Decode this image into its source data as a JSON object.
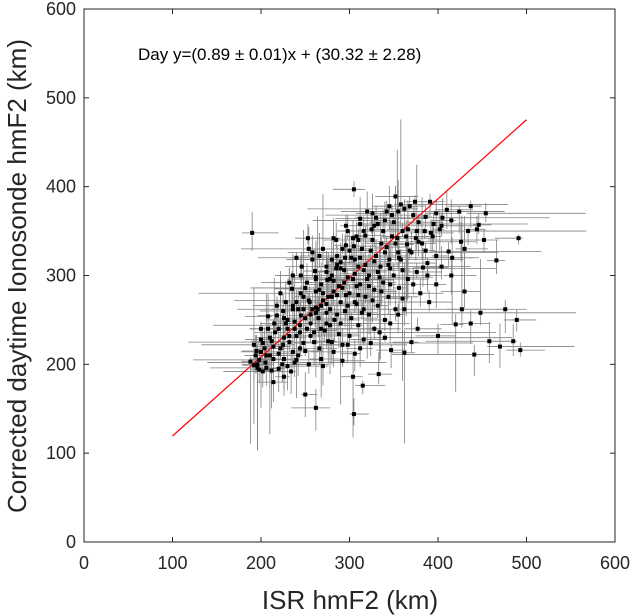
{
  "chart_data": {
    "type": "scatter",
    "title": "",
    "xlabel": "ISR hmF2 (km)",
    "ylabel": "Corrected daytime Ionosonde hmF2 (km)",
    "xlim": [
      0,
      600
    ],
    "ylim": [
      0,
      600
    ],
    "xticks": [
      "0",
      "100",
      "200",
      "300",
      "400",
      "500",
      "600"
    ],
    "yticks": [
      "0",
      "100",
      "200",
      "300",
      "400",
      "500",
      "600"
    ],
    "annotation": "Day y=(0.89 ± 0.01)x + (30.32 ± 2.28)",
    "fit_line": {
      "slope": 0.89,
      "intercept": 30.32,
      "x_range": [
        100,
        500
      ],
      "color": "#ff0000"
    },
    "marker_color": "#000000",
    "errorbar_color": "#808080",
    "series": [
      {
        "name": "Day",
        "points": [
          [
            190,
            348
          ],
          [
            305,
            397
          ],
          [
            352,
            389
          ],
          [
            374,
            383
          ],
          [
            391,
            383
          ],
          [
            437,
            378
          ],
          [
            446,
            357
          ],
          [
            491,
            342
          ],
          [
            466,
            317
          ],
          [
            412,
            327
          ],
          [
            430,
            282
          ],
          [
            437,
            246
          ],
          [
            427,
            262
          ],
          [
            458,
            226
          ],
          [
            470,
            220
          ],
          [
            485,
            226
          ],
          [
            493,
            216
          ],
          [
            489,
            250
          ],
          [
            441,
            211
          ],
          [
            377,
            240
          ],
          [
            355,
            256
          ],
          [
            362,
            213
          ],
          [
            383,
            309
          ],
          [
            347,
            216
          ],
          [
            305,
            144
          ],
          [
            333,
            189
          ],
          [
            304,
            186
          ],
          [
            250,
            166
          ],
          [
            262,
            151
          ],
          [
            270,
            198
          ],
          [
            280,
            225
          ],
          [
            292,
            222
          ],
          [
            315,
            176
          ],
          [
            261,
            305
          ],
          [
            240,
            320
          ],
          [
            253,
            342
          ],
          [
            245,
            280
          ],
          [
            225,
            260
          ],
          [
            215,
            246
          ],
          [
            210,
            230
          ],
          [
            200,
            214
          ],
          [
            192,
            199
          ],
          [
            205,
            202
          ],
          [
            220,
            212
          ],
          [
            232,
            225
          ],
          [
            238,
            248
          ],
          [
            248,
            262
          ],
          [
            255,
            270
          ],
          [
            262,
            282
          ],
          [
            268,
            290
          ],
          [
            275,
            295
          ],
          [
            280,
            300
          ],
          [
            285,
            308
          ],
          [
            290,
            315
          ],
          [
            295,
            320
          ],
          [
            300,
            328
          ],
          [
            305,
            333
          ],
          [
            310,
            340
          ],
          [
            318,
            345
          ],
          [
            325,
            352
          ],
          [
            332,
            358
          ],
          [
            340,
            362
          ],
          [
            348,
            368
          ],
          [
            355,
            372
          ],
          [
            362,
            375
          ],
          [
            368,
            378
          ],
          [
            320,
            372
          ],
          [
            330,
            365
          ],
          [
            345,
            378
          ],
          [
            312,
            358
          ],
          [
            298,
            350
          ],
          [
            285,
            340
          ],
          [
            270,
            330
          ],
          [
            258,
            318
          ],
          [
            245,
            300
          ],
          [
            235,
            285
          ],
          [
            228,
            270
          ],
          [
            218,
            255
          ],
          [
            208,
            240
          ],
          [
            200,
            228
          ],
          [
            195,
            215
          ],
          [
            198,
            205
          ],
          [
            210,
            210
          ],
          [
            225,
            222
          ],
          [
            240,
            232
          ],
          [
            252,
            240
          ],
          [
            265,
            252
          ],
          [
            278,
            262
          ],
          [
            290,
            270
          ],
          [
            300,
            280
          ],
          [
            312,
            290
          ],
          [
            322,
            300
          ],
          [
            335,
            310
          ],
          [
            345,
            318
          ],
          [
            355,
            326
          ],
          [
            365,
            335
          ],
          [
            375,
            342
          ],
          [
            385,
            350
          ],
          [
            395,
            358
          ],
          [
            405,
            365
          ],
          [
            260,
            225
          ],
          [
            272,
            238
          ],
          [
            283,
            250
          ],
          [
            295,
            260
          ],
          [
            308,
            268
          ],
          [
            318,
            276
          ],
          [
            328,
            284
          ],
          [
            338,
            292
          ],
          [
            350,
            300
          ],
          [
            360,
            306
          ],
          [
            250,
            215
          ],
          [
            240,
            205
          ],
          [
            230,
            198
          ],
          [
            220,
            195
          ],
          [
            212,
            193
          ],
          [
            202,
            192
          ],
          [
            196,
            196
          ],
          [
            230,
            240
          ],
          [
            245,
            255
          ],
          [
            258,
            262
          ],
          [
            270,
            272
          ],
          [
            282,
            282
          ],
          [
            294,
            292
          ],
          [
            306,
            302
          ],
          [
            318,
            312
          ],
          [
            330,
            322
          ],
          [
            342,
            332
          ],
          [
            354,
            342
          ],
          [
            366,
            352
          ],
          [
            378,
            360
          ],
          [
            264,
            262
          ],
          [
            276,
            276
          ],
          [
            288,
            288
          ],
          [
            298,
            298
          ],
          [
            310,
            310
          ],
          [
            270,
            280
          ],
          [
            282,
            294
          ],
          [
            294,
            306
          ],
          [
            306,
            318
          ],
          [
            256,
            246
          ],
          [
            244,
            236
          ],
          [
            232,
            232
          ],
          [
            222,
            218
          ],
          [
            214,
            206
          ],
          [
            206,
            196
          ],
          [
            226,
            206
          ],
          [
            236,
            214
          ],
          [
            248,
            224
          ],
          [
            260,
            236
          ],
          [
            274,
            246
          ],
          [
            286,
            256
          ],
          [
            298,
            266
          ],
          [
            310,
            278
          ],
          [
            322,
            288
          ],
          [
            334,
            298
          ],
          [
            346,
            308
          ],
          [
            358,
            318
          ],
          [
            370,
            326
          ],
          [
            382,
            336
          ],
          [
            394,
            344
          ],
          [
            402,
            352
          ],
          [
            415,
            362
          ],
          [
            424,
            372
          ],
          [
            410,
            374
          ],
          [
            398,
            370
          ],
          [
            386,
            366
          ],
          [
            372,
            368
          ],
          [
            350,
            360
          ],
          [
            338,
            350
          ],
          [
            326,
            340
          ],
          [
            314,
            330
          ],
          [
            302,
            320
          ],
          [
            290,
            308
          ],
          [
            278,
            296
          ],
          [
            266,
            284
          ],
          [
            254,
            272
          ],
          [
            242,
            262
          ],
          [
            230,
            250
          ],
          [
            220,
            240
          ],
          [
            212,
            226
          ],
          [
            204,
            218
          ],
          [
            236,
            262
          ],
          [
            248,
            276
          ],
          [
            262,
            298
          ],
          [
            274,
            310
          ],
          [
            286,
            322
          ],
          [
            296,
            334
          ],
          [
            308,
            344
          ],
          [
            252,
            292
          ],
          [
            240,
            270
          ],
          [
            228,
            246
          ],
          [
            216,
            236
          ],
          [
            202,
            224
          ],
          [
            194,
            210
          ],
          [
            188,
            203
          ],
          [
            198,
            194
          ],
          [
            300,
            232
          ],
          [
            310,
            244
          ],
          [
            322,
            256
          ],
          [
            332,
            266
          ],
          [
            344,
            276
          ],
          [
            356,
            286
          ],
          [
            366,
            296
          ],
          [
            376,
            304
          ],
          [
            388,
            314
          ],
          [
            398,
            322
          ],
          [
            316,
            228
          ],
          [
            328,
            240
          ],
          [
            340,
            250
          ],
          [
            352,
            262
          ],
          [
            282,
            214
          ],
          [
            292,
            204
          ],
          [
            268,
            206
          ],
          [
            254,
            200
          ],
          [
            242,
            210
          ],
          [
            234,
            192
          ],
          [
            224,
            200
          ],
          [
            306,
            212
          ],
          [
            340,
            230
          ],
          [
            370,
            225
          ],
          [
            400,
            232
          ],
          [
            420,
            245
          ],
          [
            448,
            258
          ],
          [
            476,
            262
          ],
          [
            415,
            300
          ],
          [
            430,
            330
          ],
          [
            398,
            290
          ],
          [
            380,
            280
          ],
          [
            360,
            274
          ],
          [
            372,
            290
          ],
          [
            388,
            300
          ],
          [
            404,
            310
          ],
          [
            416,
            320
          ],
          [
            426,
            338
          ],
          [
            434,
            350
          ],
          [
            444,
            352
          ],
          [
            452,
            340
          ],
          [
            454,
            370
          ],
          [
            386,
            328
          ],
          [
            390,
            270
          ],
          [
            362,
            262
          ],
          [
            346,
            246
          ],
          [
            334,
            236
          ],
          [
            324,
            224
          ],
          [
            312,
            218
          ],
          [
            298,
            222
          ],
          [
            288,
            234
          ],
          [
            276,
            226
          ],
          [
            266,
            218
          ],
          [
            256,
            232
          ],
          [
            244,
            218
          ],
          [
            238,
            202
          ],
          [
            226,
            186
          ],
          [
            214,
            180
          ],
          [
            280,
            318
          ],
          [
            292,
            330
          ],
          [
            304,
            342
          ],
          [
            316,
            350
          ],
          [
            328,
            356
          ],
          [
            266,
            322
          ],
          [
            254,
            330
          ],
          [
            236,
            300
          ],
          [
            246,
            310
          ],
          [
            258,
            326
          ],
          [
            222,
            280
          ],
          [
            232,
            292
          ],
          [
            218,
            266
          ],
          [
            208,
            254
          ],
          [
            200,
            240
          ],
          [
            192,
            222
          ],
          [
            282,
            342
          ],
          [
            296,
            356
          ],
          [
            312,
            364
          ],
          [
            326,
            370
          ],
          [
            342,
            372
          ],
          [
            358,
            380
          ],
          [
            306,
            270
          ],
          [
            316,
            262
          ],
          [
            326,
            272
          ],
          [
            336,
            282
          ],
          [
            346,
            290
          ],
          [
            274,
            268
          ],
          [
            286,
            278
          ],
          [
            262,
            258
          ],
          [
            250,
            252
          ],
          [
            238,
            240
          ],
          [
            226,
            230
          ],
          [
            214,
            220
          ],
          [
            206,
            210
          ],
          [
            196,
            200
          ],
          [
            268,
            240
          ],
          [
            278,
            244
          ],
          [
            290,
            246
          ],
          [
            302,
            252
          ],
          [
            314,
            258
          ],
          [
            262,
            264
          ],
          [
            274,
            258
          ],
          [
            296,
            278
          ],
          [
            308,
            288
          ],
          [
            320,
            296
          ],
          [
            332,
            304
          ],
          [
            344,
            312
          ],
          [
            356,
            320
          ],
          [
            368,
            328
          ],
          [
            378,
            338
          ],
          [
            392,
            348
          ],
          [
            404,
            356
          ],
          [
            312,
            320
          ],
          [
            324,
            328
          ],
          [
            336,
            336
          ],
          [
            348,
            344
          ],
          [
            360,
            350
          ],
          [
            226,
            252
          ],
          [
            236,
            266
          ],
          [
            250,
            286
          ],
          [
            262,
            296
          ],
          [
            274,
            304
          ],
          [
            286,
            312
          ],
          [
            244,
            244
          ],
          [
            256,
            256
          ],
          [
            268,
            266
          ],
          [
            280,
            276
          ],
          [
            292,
            286
          ],
          [
            304,
            296
          ],
          [
            316,
            306
          ],
          [
            328,
            316
          ],
          [
            340,
            326
          ],
          [
            352,
            336
          ],
          [
            364,
            344
          ],
          [
            376,
            350
          ]
        ]
      }
    ]
  }
}
